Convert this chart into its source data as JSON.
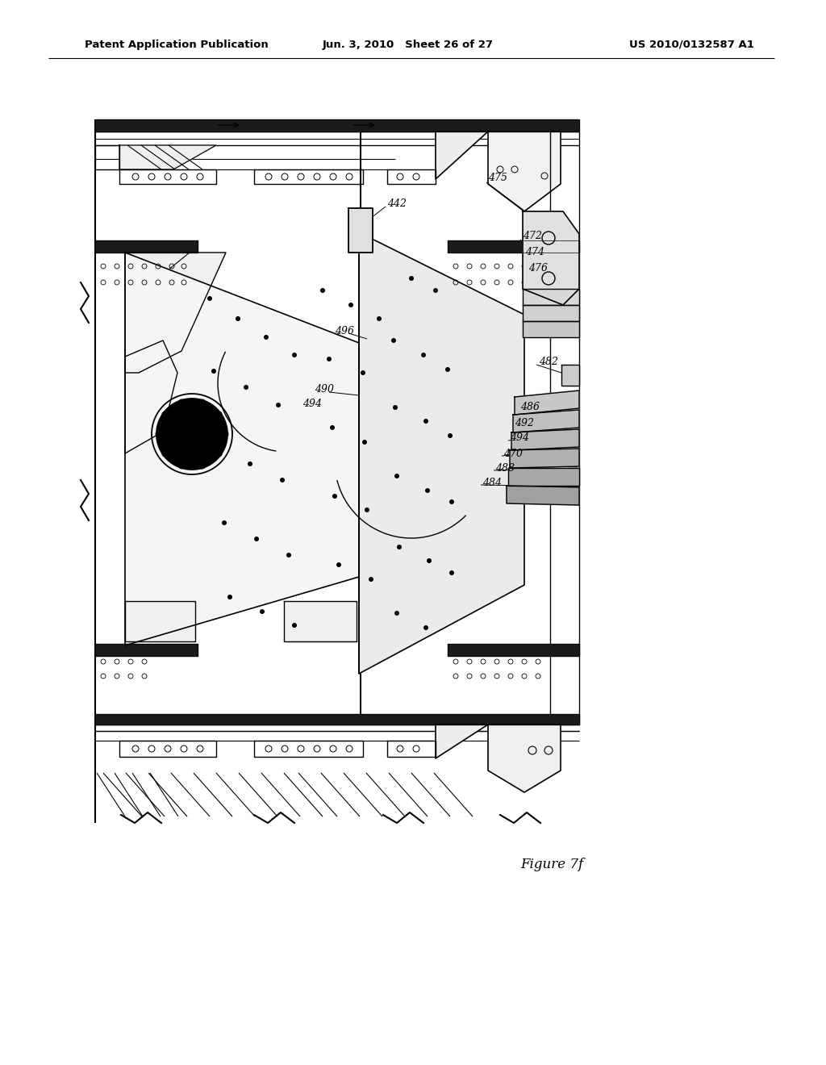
{
  "header_left": "Patent Application Publication",
  "header_center": "Jun. 3, 2010   Sheet 26 of 27",
  "header_right": "US 2010/0132587 A1",
  "figure_label": "Figure 7f",
  "bg_color": "#ffffff",
  "line_color": "#000000"
}
